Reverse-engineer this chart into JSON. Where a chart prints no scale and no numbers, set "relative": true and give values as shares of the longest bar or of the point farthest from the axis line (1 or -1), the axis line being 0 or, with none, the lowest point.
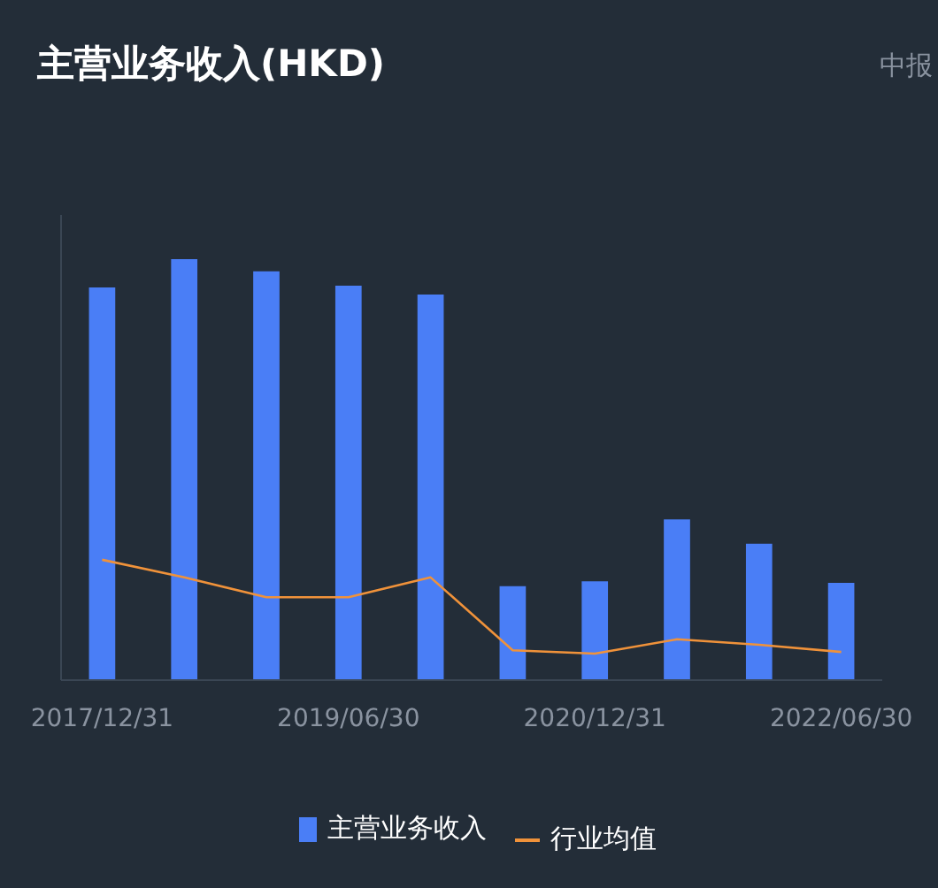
{
  "chart_data": {
    "type": "bar",
    "title": "主营业务收入(HKD)",
    "subtitle": "中报",
    "relative": true,
    "categories": [
      "2017/12/31",
      null,
      null,
      "2019/06/30",
      null,
      null,
      "2020/12/31",
      null,
      null,
      "2022/06/30"
    ],
    "series": [
      {
        "name": "主营业务收入",
        "color": "#4a7ef6",
        "values": [
          0.933,
          1,
          0.971,
          0.937,
          0.916,
          0.223,
          0.235,
          0.382,
          0.324,
          0.231
        ]
      },
      {
        "name": "行业均值",
        "type": "line",
        "color": "#f0923a",
        "values": [
          0.286,
          0.244,
          0.197,
          0.197,
          0.244,
          0.071,
          0.063,
          0.097,
          0.084,
          0.067
        ]
      }
    ],
    "legend": "bottom",
    "grid": false
  }
}
